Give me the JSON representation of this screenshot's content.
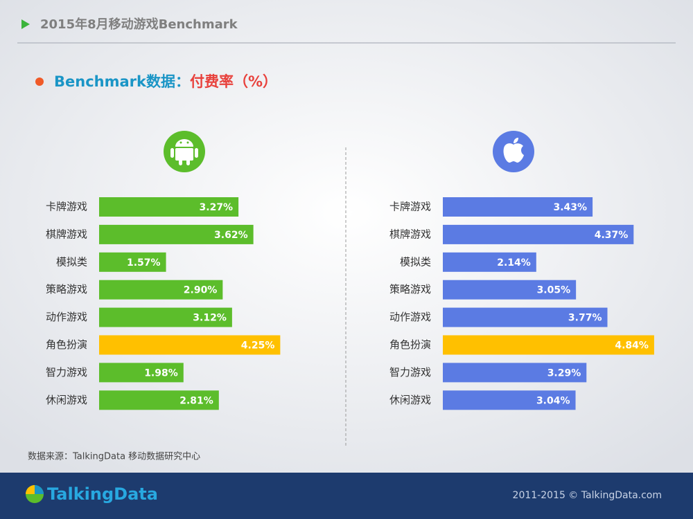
{
  "header": {
    "title": "2015年8月移动游戏Benchmark"
  },
  "subtitle": {
    "prefix": "Benchmark数据：",
    "metric": "付费率（%）"
  },
  "chart_data": [
    {
      "type": "bar",
      "orientation": "horizontal",
      "categories": [
        "卡牌游戏",
        "棋牌游戏",
        "模拟类",
        "策略游戏",
        "动作游戏",
        "角色扮演",
        "智力游戏",
        "休闲游戏"
      ],
      "values": [
        3.27,
        3.62,
        1.57,
        2.9,
        3.12,
        4.25,
        1.98,
        2.81
      ],
      "value_labels": [
        "3.27%",
        "3.62%",
        "1.57%",
        "2.90%",
        "3.12%",
        "4.25%",
        "1.98%",
        "2.81%"
      ],
      "colors": [
        "#5cbd2b",
        "#5cbd2b",
        "#5cbd2b",
        "#5cbd2b",
        "#5cbd2b",
        "#ffc000",
        "#5cbd2b",
        "#5cbd2b"
      ]
    },
    {
      "type": "bar",
      "orientation": "horizontal",
      "categories": [
        "卡牌游戏",
        "棋牌游戏",
        "模拟类",
        "策略游戏",
        "动作游戏",
        "角色扮演",
        "智力游戏",
        "休闲游戏"
      ],
      "values": [
        3.43,
        4.37,
        2.14,
        3.05,
        3.77,
        4.84,
        3.29,
        3.04
      ],
      "value_labels": [
        "3.43%",
        "4.37%",
        "2.14%",
        "3.05%",
        "3.77%",
        "4.84%",
        "3.29%",
        "3.04%"
      ],
      "colors": [
        "#5b7be3",
        "#5b7be3",
        "#5b7be3",
        "#5b7be3",
        "#5b7be3",
        "#ffc000",
        "#5b7be3",
        "#5b7be3"
      ]
    }
  ],
  "source": "数据来源：TalkingData 移动数据研究中心",
  "footer": {
    "logo": "TalkingData",
    "copyright": "2011-2015 © TalkingData.com"
  }
}
